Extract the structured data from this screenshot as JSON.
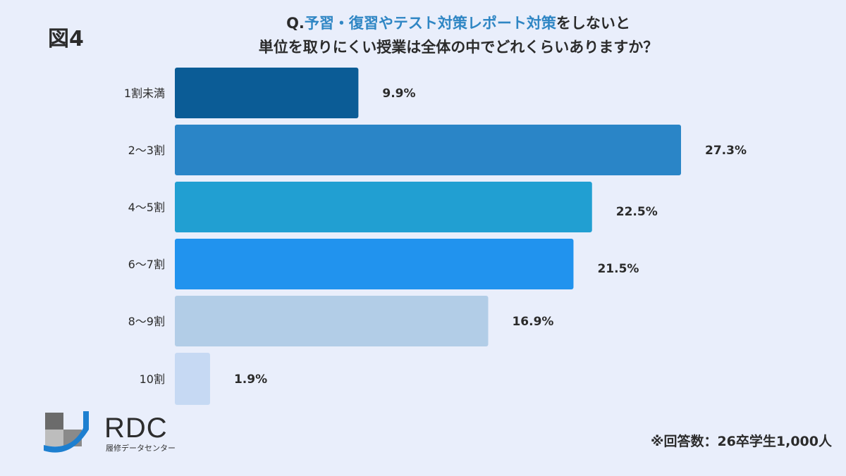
{
  "figure_label": "図4",
  "title": {
    "prefix": "Q.",
    "highlight": "予習・復習やテスト対策レポート対策",
    "line1_suffix": "をしないと",
    "line2": "単位を取りにくい授業は全体の中でどれくらいありますか？"
  },
  "footnote": "※回答数：26卒学生1,000人",
  "logo": {
    "name": "RDC",
    "subtitle": "履修データセンター"
  },
  "chart_data": {
    "type": "bar",
    "orientation": "horizontal",
    "categories": [
      "1割未満",
      "2〜3割",
      "4〜5割",
      "6〜7割",
      "8〜9割",
      "10割"
    ],
    "values": [
      9.9,
      27.3,
      22.5,
      21.5,
      16.9,
      1.9
    ],
    "data_labels": [
      "9.9%",
      "27.3%",
      "22.5%",
      "21.5%",
      "16.9%",
      "1.9%"
    ],
    "colors": [
      "#0b5c96",
      "#2a85c7",
      "#219fd2",
      "#2193ee",
      "#b2cde7",
      "#c6d9f3"
    ],
    "xlim": [
      0,
      27.3
    ],
    "unit": "%",
    "grid": false,
    "legend": "none"
  }
}
